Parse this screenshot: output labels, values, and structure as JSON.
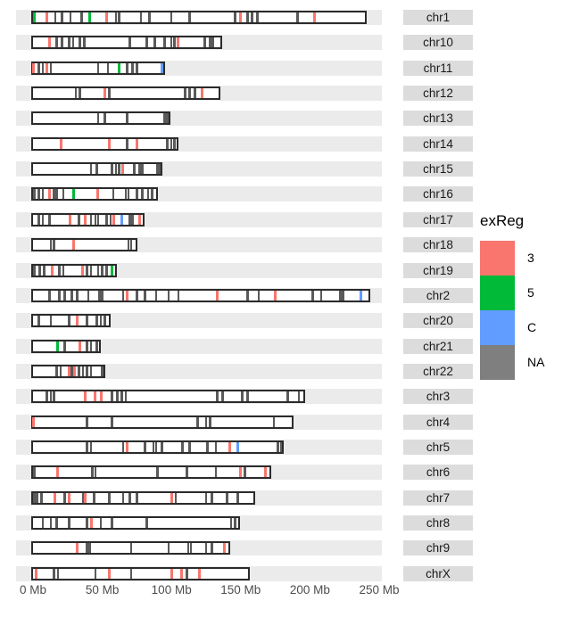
{
  "chart_data": {
    "type": "karyogram",
    "title": "",
    "x_axis": {
      "tick_labels": [
        "0 Mb",
        "50 Mb",
        "100 Mb",
        "150 Mb",
        "200 Mb",
        "250 Mb"
      ],
      "tick_values_mb": [
        0,
        50,
        100,
        150,
        200,
        250
      ],
      "range_mb": [
        0,
        250
      ],
      "unit": "Mb"
    },
    "legend": {
      "title": "exReg",
      "position": "right",
      "entries": [
        {
          "label": "3",
          "color": "#F8766D"
        },
        {
          "label": "5",
          "color": "#00BA38"
        },
        {
          "label": "C",
          "color": "#619CFF"
        },
        {
          "label": "NA",
          "color": "#7F7F7F"
        }
      ]
    },
    "segment_colors": {
      "3": "#F8766D",
      "5": "#00BA38",
      "C": "#619CFF",
      "NA": "#5A5A5A"
    },
    "chromosomes": [
      {
        "name": "chr1",
        "length_mb": 240,
        "segments": [
          [
            1,
            "5"
          ],
          [
            10,
            "3"
          ],
          [
            16,
            "NA"
          ],
          [
            21,
            "NA"
          ],
          [
            27,
            "NA"
          ],
          [
            35,
            "NA"
          ],
          [
            41,
            "5"
          ],
          [
            53,
            "3"
          ],
          [
            60,
            "NA"
          ],
          [
            62,
            "NA"
          ],
          [
            78,
            "NA"
          ],
          [
            84,
            "NA"
          ],
          [
            100,
            "NA"
          ],
          [
            113,
            "NA"
          ],
          [
            146,
            "NA"
          ],
          [
            150,
            "3"
          ],
          [
            155,
            "NA"
          ],
          [
            158,
            "NA"
          ],
          [
            162,
            "NA"
          ],
          [
            191,
            "NA"
          ],
          [
            203,
            "3"
          ]
        ]
      },
      {
        "name": "chr10",
        "length_mb": 135,
        "segments": [
          [
            12,
            "3"
          ],
          [
            17,
            "NA"
          ],
          [
            21,
            "NA"
          ],
          [
            26,
            "NA"
          ],
          [
            29,
            "NA"
          ],
          [
            34,
            "NA"
          ],
          [
            37,
            "NA"
          ],
          [
            70,
            "NA"
          ],
          [
            82,
            "NA"
          ],
          [
            88,
            "NA"
          ],
          [
            95,
            "NA"
          ],
          [
            100,
            "NA"
          ],
          [
            102,
            "NA"
          ],
          [
            105,
            "3"
          ],
          [
            124,
            "NA"
          ],
          [
            128,
            "NA"
          ],
          [
            130,
            "NA"
          ]
        ]
      },
      {
        "name": "chr11",
        "length_mb": 94,
        "segments": [
          [
            0.5,
            "3"
          ],
          [
            4,
            "NA"
          ],
          [
            7,
            "NA"
          ],
          [
            10,
            "3"
          ],
          [
            13,
            "NA"
          ],
          [
            47,
            "NA"
          ],
          [
            54,
            "NA"
          ],
          [
            62,
            "5"
          ],
          [
            68,
            "NA"
          ],
          [
            72,
            "NA"
          ],
          [
            75,
            "NA"
          ],
          [
            93,
            "C"
          ]
        ]
      },
      {
        "name": "chr12",
        "length_mb": 134,
        "segments": [
          [
            31,
            "NA"
          ],
          [
            34,
            "NA"
          ],
          [
            52,
            "3"
          ],
          [
            55,
            "NA"
          ],
          [
            110,
            "NA"
          ],
          [
            113,
            "NA"
          ],
          [
            117,
            "NA"
          ],
          [
            122,
            "3"
          ]
        ]
      },
      {
        "name": "chr13",
        "length_mb": 98,
        "segments": [
          [
            47,
            "NA"
          ],
          [
            52,
            "NA"
          ],
          [
            68,
            "NA"
          ],
          [
            95,
            "NA"
          ],
          [
            97,
            "NA"
          ]
        ]
      },
      {
        "name": "chr14",
        "length_mb": 104,
        "segments": [
          [
            20,
            "3"
          ],
          [
            55,
            "3"
          ],
          [
            68,
            "NA"
          ],
          [
            75,
            "3"
          ],
          [
            97,
            "NA"
          ],
          [
            100,
            "NA"
          ],
          [
            102,
            "NA"
          ]
        ]
      },
      {
        "name": "chr15",
        "length_mb": 92,
        "segments": [
          [
            42,
            "NA"
          ],
          [
            46,
            "NA"
          ],
          [
            57,
            "NA"
          ],
          [
            60,
            "NA"
          ],
          [
            62,
            "NA"
          ],
          [
            65,
            "3"
          ],
          [
            73,
            "NA"
          ],
          [
            77,
            "NA"
          ],
          [
            79,
            "NA"
          ],
          [
            90,
            "NA"
          ],
          [
            91.5,
            "NA"
          ]
        ]
      },
      {
        "name": "chr16",
        "length_mb": 89,
        "segments": [
          [
            1,
            "NA"
          ],
          [
            4,
            "NA"
          ],
          [
            7,
            "NA"
          ],
          [
            12,
            "3"
          ],
          [
            15,
            "NA"
          ],
          [
            17,
            "NA"
          ],
          [
            22,
            "NA"
          ],
          [
            29,
            "5"
          ],
          [
            47,
            "3"
          ],
          [
            58,
            "NA"
          ],
          [
            67,
            "NA"
          ],
          [
            69,
            "NA"
          ],
          [
            75,
            "NA"
          ],
          [
            79,
            "NA"
          ],
          [
            83,
            "NA"
          ],
          [
            86,
            "NA"
          ]
        ]
      },
      {
        "name": "chr17",
        "length_mb": 79,
        "segments": [
          [
            4,
            "NA"
          ],
          [
            7,
            "NA"
          ],
          [
            12,
            "NA"
          ],
          [
            27,
            "3"
          ],
          [
            33,
            "NA"
          ],
          [
            38,
            "3"
          ],
          [
            42,
            "NA"
          ],
          [
            45,
            "NA"
          ],
          [
            47,
            "NA"
          ],
          [
            53,
            "NA"
          ],
          [
            56,
            "NA"
          ],
          [
            58,
            "3"
          ],
          [
            64,
            "C"
          ],
          [
            70,
            "NA"
          ],
          [
            72,
            "NA"
          ],
          [
            77,
            "3"
          ]
        ]
      },
      {
        "name": "chr18",
        "length_mb": 74,
        "segments": [
          [
            13,
            "NA"
          ],
          [
            15,
            "NA"
          ],
          [
            29,
            "3"
          ],
          [
            69,
            "NA"
          ],
          [
            71,
            "NA"
          ]
        ]
      },
      {
        "name": "chr19",
        "length_mb": 59,
        "segments": [
          [
            1,
            "NA"
          ],
          [
            5,
            "NA"
          ],
          [
            8,
            "NA"
          ],
          [
            14,
            "3"
          ],
          [
            19,
            "NA"
          ],
          [
            22,
            "NA"
          ],
          [
            36,
            "3"
          ],
          [
            39,
            "NA"
          ],
          [
            42,
            "NA"
          ],
          [
            47,
            "NA"
          ],
          [
            50,
            "NA"
          ],
          [
            53,
            "NA"
          ],
          [
            57,
            "5"
          ]
        ]
      },
      {
        "name": "chr2",
        "length_mb": 242,
        "segments": [
          [
            12,
            "NA"
          ],
          [
            19,
            "NA"
          ],
          [
            23,
            "NA"
          ],
          [
            28,
            "NA"
          ],
          [
            32,
            "NA"
          ],
          [
            40,
            "NA"
          ],
          [
            48,
            "NA"
          ],
          [
            50,
            "NA"
          ],
          [
            65,
            "NA"
          ],
          [
            68,
            "3"
          ],
          [
            75,
            "NA"
          ],
          [
            81,
            "NA"
          ],
          [
            89,
            "NA"
          ],
          [
            98,
            "NA"
          ],
          [
            105,
            "NA"
          ],
          [
            133,
            "3"
          ],
          [
            155,
            "NA"
          ],
          [
            163,
            "NA"
          ],
          [
            175,
            "3"
          ],
          [
            202,
            "NA"
          ],
          [
            208,
            "NA"
          ],
          [
            222,
            "NA"
          ],
          [
            224,
            "NA"
          ],
          [
            237,
            "C"
          ]
        ]
      },
      {
        "name": "chr20",
        "length_mb": 55,
        "segments": [
          [
            4,
            "NA"
          ],
          [
            13,
            "NA"
          ],
          [
            26,
            "NA"
          ],
          [
            32,
            "3"
          ],
          [
            39,
            "NA"
          ],
          [
            46,
            "NA"
          ],
          [
            49,
            "NA"
          ],
          [
            52,
            "NA"
          ]
        ]
      },
      {
        "name": "chr21",
        "length_mb": 48,
        "segments": [
          [
            18,
            "5"
          ],
          [
            23,
            "NA"
          ],
          [
            34,
            "3"
          ],
          [
            39,
            "NA"
          ],
          [
            42,
            "NA"
          ],
          [
            46,
            "NA"
          ]
        ]
      },
      {
        "name": "chr22",
        "length_mb": 51,
        "segments": [
          [
            17,
            "NA"
          ],
          [
            20,
            "NA"
          ],
          [
            26,
            "3"
          ],
          [
            28,
            "NA"
          ],
          [
            30,
            "3"
          ],
          [
            33,
            "NA"
          ],
          [
            36,
            "NA"
          ],
          [
            39,
            "NA"
          ],
          [
            42,
            "NA"
          ],
          [
            50,
            "NA"
          ]
        ]
      },
      {
        "name": "chr3",
        "length_mb": 195,
        "segments": [
          [
            10,
            "NA"
          ],
          [
            13,
            "NA"
          ],
          [
            15,
            "NA"
          ],
          [
            38,
            "3"
          ],
          [
            45,
            "3"
          ],
          [
            49,
            "3"
          ],
          [
            57,
            "NA"
          ],
          [
            61,
            "NA"
          ],
          [
            64,
            "NA"
          ],
          [
            67,
            "NA"
          ],
          [
            133,
            "NA"
          ],
          [
            137,
            "NA"
          ],
          [
            151,
            "NA"
          ],
          [
            155,
            "NA"
          ],
          [
            184,
            "NA"
          ],
          [
            192,
            "NA"
          ]
        ]
      },
      {
        "name": "chr4",
        "length_mb": 187,
        "segments": [
          [
            0.5,
            "3"
          ],
          [
            39,
            "NA"
          ],
          [
            57,
            "NA"
          ],
          [
            119,
            "NA"
          ],
          [
            125,
            "NA"
          ],
          [
            128,
            "NA"
          ],
          [
            174,
            "NA"
          ]
        ]
      },
      {
        "name": "chr5",
        "length_mb": 180,
        "segments": [
          [
            39,
            "NA"
          ],
          [
            42,
            "NA"
          ],
          [
            65,
            "NA"
          ],
          [
            68,
            "3"
          ],
          [
            81,
            "NA"
          ],
          [
            87,
            "NA"
          ],
          [
            89,
            "NA"
          ],
          [
            93,
            "NA"
          ],
          [
            108,
            "NA"
          ],
          [
            113,
            "NA"
          ],
          [
            126,
            "NA"
          ],
          [
            132,
            "NA"
          ],
          [
            142,
            "3"
          ],
          [
            148,
            "C"
          ],
          [
            177,
            "NA"
          ],
          [
            179,
            "NA"
          ]
        ]
      },
      {
        "name": "chr6",
        "length_mb": 171,
        "segments": [
          [
            1,
            "NA"
          ],
          [
            18,
            "3"
          ],
          [
            43,
            "NA"
          ],
          [
            45,
            "NA"
          ],
          [
            90,
            "NA"
          ],
          [
            111,
            "NA"
          ],
          [
            132,
            "NA"
          ],
          [
            150,
            "3"
          ],
          [
            153,
            "NA"
          ],
          [
            168,
            "3"
          ]
        ]
      },
      {
        "name": "chr7",
        "length_mb": 159,
        "segments": [
          [
            1,
            "NA"
          ],
          [
            3,
            "NA"
          ],
          [
            6,
            "NA"
          ],
          [
            16,
            "3"
          ],
          [
            23,
            "NA"
          ],
          [
            26,
            "3"
          ],
          [
            36,
            "NA"
          ],
          [
            38,
            "3"
          ],
          [
            44,
            "NA"
          ],
          [
            55,
            "NA"
          ],
          [
            65,
            "NA"
          ],
          [
            70,
            "NA"
          ],
          [
            75,
            "NA"
          ],
          [
            100,
            "3"
          ],
          [
            103,
            "NA"
          ],
          [
            125,
            "NA"
          ],
          [
            129,
            "NA"
          ],
          [
            140,
            "NA"
          ],
          [
            148,
            "NA"
          ]
        ]
      },
      {
        "name": "chr8",
        "length_mb": 148,
        "segments": [
          [
            7,
            "NA"
          ],
          [
            13,
            "NA"
          ],
          [
            17,
            "NA"
          ],
          [
            26,
            "NA"
          ],
          [
            39,
            "NA"
          ],
          [
            42,
            "3"
          ],
          [
            49,
            "NA"
          ],
          [
            57,
            "NA"
          ],
          [
            82,
            "NA"
          ],
          [
            143,
            "NA"
          ],
          [
            146,
            "NA"
          ]
        ]
      },
      {
        "name": "chr9",
        "length_mb": 141,
        "segments": [
          [
            32,
            "3"
          ],
          [
            39,
            "NA"
          ],
          [
            41,
            "NA"
          ],
          [
            71,
            "NA"
          ],
          [
            98,
            "NA"
          ],
          [
            112,
            "NA"
          ],
          [
            114,
            "NA"
          ],
          [
            125,
            "NA"
          ],
          [
            129,
            "NA"
          ],
          [
            138,
            "3"
          ]
        ]
      },
      {
        "name": "chrX",
        "length_mb": 155,
        "segments": [
          [
            2,
            "3"
          ],
          [
            15,
            "NA"
          ],
          [
            18,
            "NA"
          ],
          [
            45,
            "NA"
          ],
          [
            55,
            "3"
          ],
          [
            71,
            "NA"
          ],
          [
            100,
            "3"
          ],
          [
            107,
            "3"
          ],
          [
            111,
            "NA"
          ],
          [
            120,
            "3"
          ]
        ]
      }
    ]
  },
  "colors": {
    "band": "#EBEBEB",
    "strip_bg": "#DCDCDC",
    "box_border": "#2B2B2B",
    "box_fill": "#FFFFFF",
    "axis_text": "#4D4D4D",
    "background": "#FFFFFF"
  }
}
